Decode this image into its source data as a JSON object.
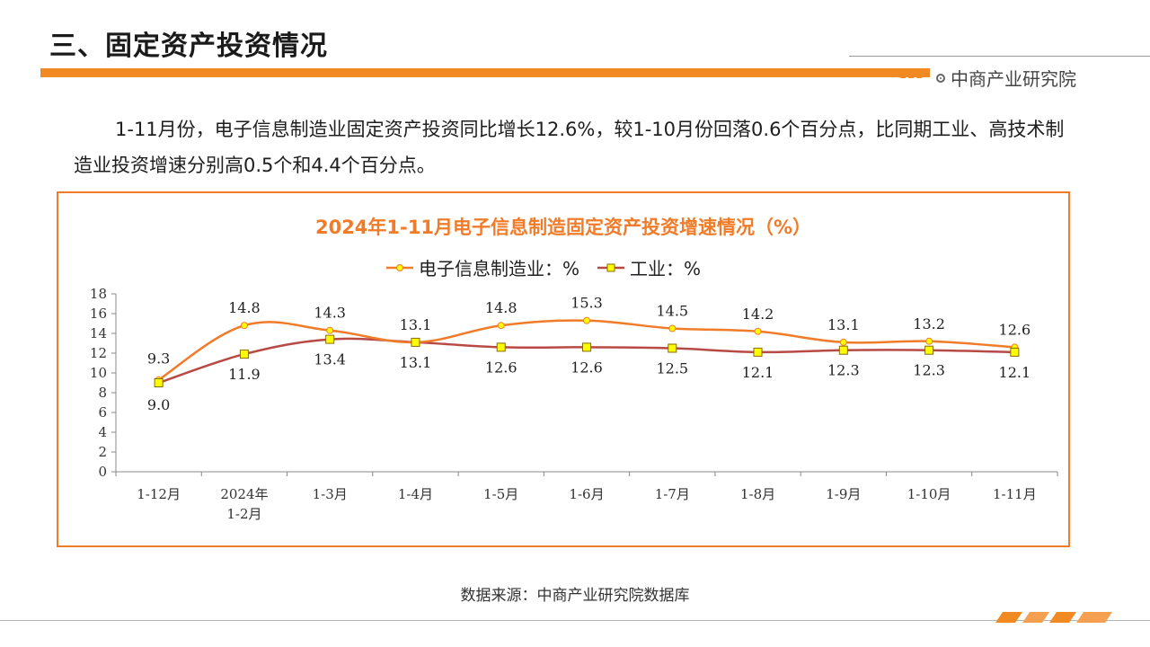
{
  "page": {
    "title": "三、固定资产投资情况",
    "brand": "中商产业研究院",
    "paragraph": "1-11月份，电子信息制造业固定资产投资同比增长12.6%，较1-10月份回落0.6个百分点，比同期工业、高技术制造业投资增速分别高0.5个和4.4个百分点。",
    "source": "数据来源：中商产业研究院数据库"
  },
  "colors": {
    "accent": "#f18a22",
    "series_electronics": "#f07c2a",
    "series_industry": "#b84a46",
    "marker_fill": "#ffff00"
  },
  "chart_data": {
    "type": "line",
    "title": "2024年1-11月电子信息制造固定资产投资增速情况（%）",
    "categories": [
      "1-12月",
      "2024年\n1-2月",
      "1-3月",
      "1-4月",
      "1-5月",
      "1-6月",
      "1-7月",
      "1-8月",
      "1-9月",
      "1-10月",
      "1-11月"
    ],
    "series": [
      {
        "name": "电子信息制造业：%",
        "values": [
          9.3,
          14.8,
          14.3,
          13.1,
          14.8,
          15.3,
          14.5,
          14.2,
          13.1,
          13.2,
          12.6
        ],
        "marker": "circle",
        "labels": [
          "9.3",
          "14.8",
          "14.3",
          "13.1",
          "14.8",
          "15.3",
          "14.5",
          "14.2",
          "13.1",
          "13.2",
          "12.6"
        ]
      },
      {
        "name": "工业：%",
        "values": [
          9.0,
          11.9,
          13.4,
          13.1,
          12.6,
          12.6,
          12.5,
          12.1,
          12.3,
          12.3,
          12.1
        ],
        "marker": "square",
        "labels": [
          "9.0",
          "11.9",
          "13.4",
          "13.1",
          "12.6",
          "12.6",
          "12.5",
          "12.1",
          "12.3",
          "12.3",
          "12.1"
        ]
      }
    ],
    "ylim": [
      0,
      18
    ],
    "yticks": [
      "0",
      "2",
      "4",
      "6",
      "8",
      "10",
      "12",
      "14",
      "16",
      "18"
    ],
    "legend": "top",
    "grid": false
  }
}
